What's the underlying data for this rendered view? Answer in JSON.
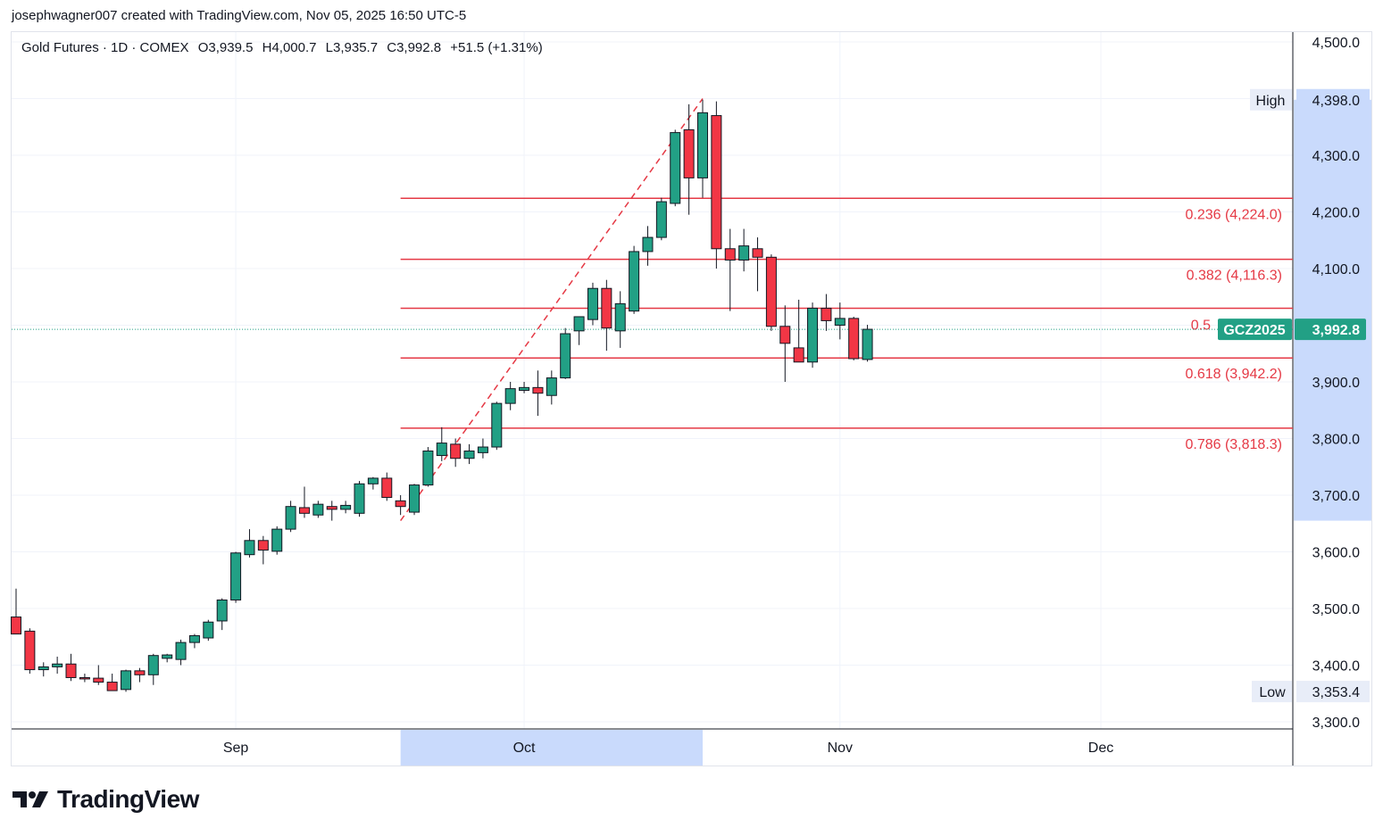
{
  "header": {
    "attribution": "josephwagner007 created with TradingView.com, Nov 05, 2025 16:50 UTC-5"
  },
  "legend": {
    "symbol": "Gold Futures · 1D · COMEX",
    "open": "O3,939.5",
    "high": "H4,000.7",
    "low": "L3,935.7",
    "close": "C3,992.8",
    "change": "+51.5 (+1.31%)"
  },
  "brand": {
    "name": "TradingView"
  },
  "colors": {
    "up": "#22a085",
    "down": "#f23645",
    "fib": "#e53945",
    "price_tag": "#22a085",
    "range_highlight": "#c9dafc"
  },
  "chart_data": {
    "type": "candlestick",
    "instrument": "Gold Futures · 1D · COMEX",
    "ylim": [
      3300,
      4500
    ],
    "y_ticks": [
      "3,300.0",
      "3,400.0",
      "3,500.0",
      "3,600.0",
      "3,700.0",
      "3,800.0",
      "3,900.0",
      "4,000.0",
      "4,100.0",
      "4,200.0",
      "4,300.0",
      "4,400.0",
      "4,500.0"
    ],
    "y_tick_values": [
      3300,
      3400,
      3500,
      3600,
      3700,
      3800,
      3900,
      4000,
      4100,
      4200,
      4300,
      4400,
      4500
    ],
    "x_ticks": [
      {
        "label": "Sep",
        "index": 16
      },
      {
        "label": "Oct",
        "index": 37
      },
      {
        "label": "Nov",
        "index": 60
      },
      {
        "label": "Dec",
        "index": 79
      }
    ],
    "x_highlight": {
      "from_index": 28,
      "to_index": 50
    },
    "candles": [
      {
        "o": 3485,
        "h": 3535,
        "l": 3455,
        "c": 3455
      },
      {
        "o": 3460,
        "h": 3465,
        "l": 3385,
        "c": 3392
      },
      {
        "o": 3392,
        "h": 3405,
        "l": 3380,
        "c": 3397
      },
      {
        "o": 3397,
        "h": 3415,
        "l": 3385,
        "c": 3402
      },
      {
        "o": 3402,
        "h": 3420,
        "l": 3372,
        "c": 3378
      },
      {
        "o": 3378,
        "h": 3385,
        "l": 3370,
        "c": 3377
      },
      {
        "o": 3377,
        "h": 3400,
        "l": 3365,
        "c": 3370
      },
      {
        "o": 3370,
        "h": 3385,
        "l": 3355,
        "c": 3355
      },
      {
        "o": 3357,
        "h": 3392,
        "l": 3353,
        "c": 3390
      },
      {
        "o": 3390,
        "h": 3395,
        "l": 3370,
        "c": 3383
      },
      {
        "o": 3383,
        "h": 3420,
        "l": 3365,
        "c": 3417
      },
      {
        "o": 3412,
        "h": 3420,
        "l": 3405,
        "c": 3418
      },
      {
        "o": 3410,
        "h": 3445,
        "l": 3400,
        "c": 3440
      },
      {
        "o": 3440,
        "h": 3455,
        "l": 3430,
        "c": 3452
      },
      {
        "o": 3448,
        "h": 3480,
        "l": 3443,
        "c": 3476
      },
      {
        "o": 3478,
        "h": 3518,
        "l": 3462,
        "c": 3515
      },
      {
        "o": 3515,
        "h": 3600,
        "l": 3510,
        "c": 3598
      },
      {
        "o": 3595,
        "h": 3640,
        "l": 3590,
        "c": 3620
      },
      {
        "o": 3620,
        "h": 3628,
        "l": 3578,
        "c": 3603
      },
      {
        "o": 3601,
        "h": 3645,
        "l": 3595,
        "c": 3640
      },
      {
        "o": 3640,
        "h": 3690,
        "l": 3635,
        "c": 3680
      },
      {
        "o": 3678,
        "h": 3715,
        "l": 3660,
        "c": 3668
      },
      {
        "o": 3665,
        "h": 3690,
        "l": 3660,
        "c": 3684
      },
      {
        "o": 3680,
        "h": 3690,
        "l": 3655,
        "c": 3675
      },
      {
        "o": 3675,
        "h": 3690,
        "l": 3668,
        "c": 3682
      },
      {
        "o": 3668,
        "h": 3725,
        "l": 3662,
        "c": 3720
      },
      {
        "o": 3720,
        "h": 3732,
        "l": 3710,
        "c": 3730
      },
      {
        "o": 3730,
        "h": 3740,
        "l": 3690,
        "c": 3696
      },
      {
        "o": 3690,
        "h": 3700,
        "l": 3665,
        "c": 3680
      },
      {
        "o": 3670,
        "h": 3720,
        "l": 3665,
        "c": 3718
      },
      {
        "o": 3718,
        "h": 3785,
        "l": 3715,
        "c": 3778
      },
      {
        "o": 3770,
        "h": 3820,
        "l": 3760,
        "c": 3792
      },
      {
        "o": 3790,
        "h": 3800,
        "l": 3750,
        "c": 3765
      },
      {
        "o": 3765,
        "h": 3790,
        "l": 3755,
        "c": 3778
      },
      {
        "o": 3775,
        "h": 3800,
        "l": 3765,
        "c": 3785
      },
      {
        "o": 3785,
        "h": 3865,
        "l": 3780,
        "c": 3862
      },
      {
        "o": 3862,
        "h": 3900,
        "l": 3850,
        "c": 3888
      },
      {
        "o": 3885,
        "h": 3900,
        "l": 3880,
        "c": 3890
      },
      {
        "o": 3890,
        "h": 3920,
        "l": 3840,
        "c": 3880
      },
      {
        "o": 3876,
        "h": 3920,
        "l": 3860,
        "c": 3907
      },
      {
        "o": 3907,
        "h": 3995,
        "l": 3905,
        "c": 3985
      },
      {
        "o": 3990,
        "h": 4015,
        "l": 3965,
        "c": 4015
      },
      {
        "o": 4010,
        "h": 4075,
        "l": 4000,
        "c": 4065
      },
      {
        "o": 4065,
        "h": 4080,
        "l": 3955,
        "c": 3995
      },
      {
        "o": 3990,
        "h": 4060,
        "l": 3960,
        "c": 4038
      },
      {
        "o": 4025,
        "h": 4140,
        "l": 4020,
        "c": 4130
      },
      {
        "o": 4130,
        "h": 4175,
        "l": 4105,
        "c": 4155
      },
      {
        "o": 4155,
        "h": 4225,
        "l": 4150,
        "c": 4218
      },
      {
        "o": 4215,
        "h": 4345,
        "l": 4210,
        "c": 4340
      },
      {
        "o": 4345,
        "h": 4390,
        "l": 4195,
        "c": 4260
      },
      {
        "o": 4260,
        "h": 4398,
        "l": 4225,
        "c": 4375
      },
      {
        "o": 4370,
        "h": 4395,
        "l": 4100,
        "c": 4135
      },
      {
        "o": 4135,
        "h": 4170,
        "l": 4025,
        "c": 4115
      },
      {
        "o": 4115,
        "h": 4170,
        "l": 4095,
        "c": 4140
      },
      {
        "o": 4135,
        "h": 4155,
        "l": 4060,
        "c": 4120
      },
      {
        "o": 4120,
        "h": 4125,
        "l": 3990,
        "c": 3998
      },
      {
        "o": 3998,
        "h": 4035,
        "l": 3900,
        "c": 3968
      },
      {
        "o": 3960,
        "h": 4045,
        "l": 3935,
        "c": 3935
      },
      {
        "o": 3935,
        "h": 4040,
        "l": 3925,
        "c": 4030
      },
      {
        "o": 4030,
        "h": 4055,
        "l": 3990,
        "c": 4008
      },
      {
        "o": 4000,
        "h": 4040,
        "l": 3975,
        "c": 4012
      },
      {
        "o": 4012,
        "h": 4015,
        "l": 3938,
        "c": 3941
      },
      {
        "o": 3939.5,
        "h": 4000.7,
        "l": 3935.7,
        "c": 3992.8
      }
    ],
    "trend_line": {
      "from": {
        "index": 28,
        "price": 3655
      },
      "to": {
        "index": 50,
        "price": 4400
      }
    },
    "fibonacci": [
      {
        "ratio": "0.236",
        "label": "0.236 (4,224.0)",
        "price": 4224.0
      },
      {
        "ratio": "0.382",
        "label": "0.382 (4,116.3)",
        "price": 4116.3
      },
      {
        "ratio": "0.5",
        "label": "0.5",
        "price": 4030.0
      },
      {
        "ratio": "0.618",
        "label": "0.618 (3,942.2)",
        "price": 3942.2
      },
      {
        "ratio": "0.786",
        "label": "0.786 (3,818.3)",
        "price": 3818.3
      }
    ],
    "fib_start_index": 28,
    "high_marker": {
      "label": "High",
      "value": "4,398.0",
      "price": 4398.0
    },
    "low_marker": {
      "label": "Low",
      "value": "3,353.4",
      "price": 3353.4
    },
    "last_price": {
      "label": "GCZ2025",
      "value": "3,992.8",
      "price": 3992.8
    },
    "grid": true
  }
}
